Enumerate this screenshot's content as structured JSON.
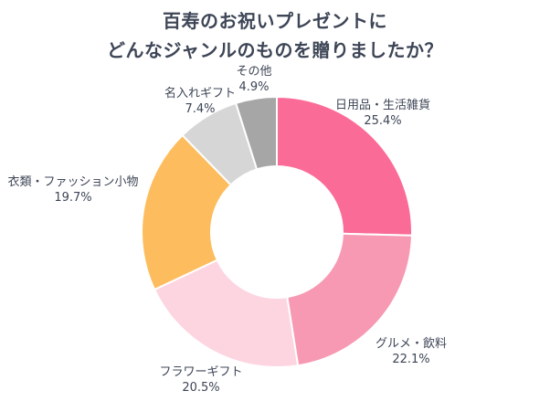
{
  "chart_data": {
    "type": "pie",
    "variant": "donut",
    "title_lines": [
      "百寿のお祝いプレゼントに",
      "どんなジャンルのものを贈りましたか？"
    ],
    "categories": [
      "日用品・生活雑貨",
      "グルメ・飲料",
      "フラワーギフト",
      "衣類・ファッション小物",
      "名入れギフト",
      "その他"
    ],
    "values": [
      25.4,
      22.1,
      20.5,
      19.7,
      7.4,
      4.9
    ],
    "value_labels": [
      "25.4%",
      "22.1%",
      "20.5%",
      "19.7%",
      "7.4%",
      "4.9%"
    ],
    "unit": "%",
    "colors": [
      "#fb6b97",
      "#f799b3",
      "#fdd5e1",
      "#fdbd5e",
      "#d6d6d6",
      "#a6a6a6"
    ],
    "start_angle": "12 o'clock",
    "direction": "clockwise",
    "legend": "none (labels placed beside slices)"
  },
  "style": {
    "label_color": "#3d4556",
    "title_color": "#3d4556"
  }
}
